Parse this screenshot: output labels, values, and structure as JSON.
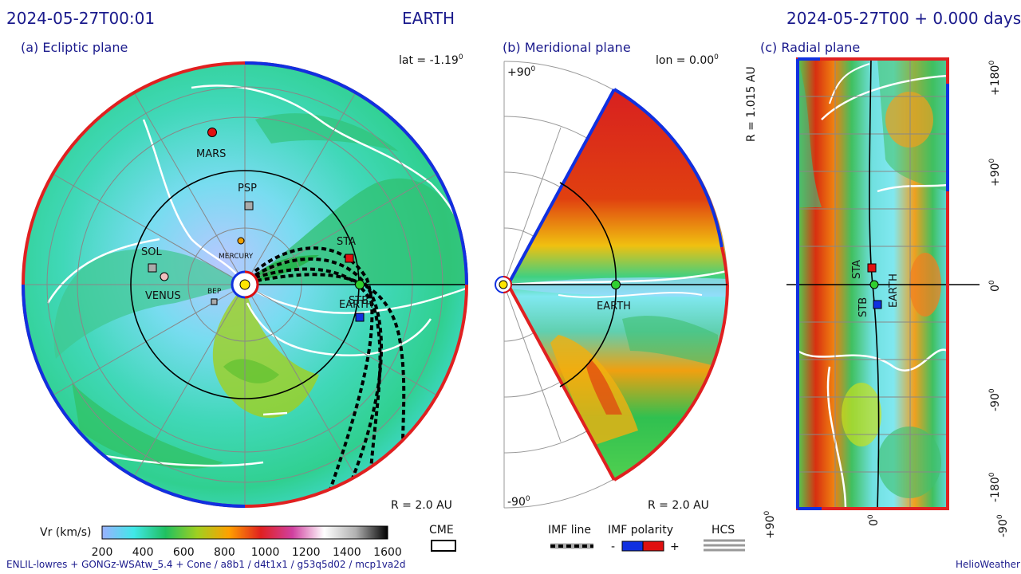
{
  "header": {
    "timestamp": "2024-05-27T00:01",
    "target": "EARTH",
    "run_time": "2024-05-27T00 +  0.000 days"
  },
  "panels": {
    "ecliptic": {
      "title": "(a) Ecliptic plane",
      "lat": "lat = -1.19",
      "lat_sup": "0",
      "radius": "R = 2.0 AU"
    },
    "meridional": {
      "title": "(b) Meridional plane",
      "lon": "lon = 0.00",
      "lon_sup": "0",
      "top_angle": "+90",
      "bottom_angle": "-90",
      "angle_sup": "0",
      "radius": "R = 2.0 AU",
      "earth": "EARTH"
    },
    "radial": {
      "title": "(c) Radial plane",
      "radius": "R = 1.015 AU",
      "right_ticks": [
        "+180",
        "+90",
        "0",
        "-90",
        "-180"
      ],
      "bottom_ticks": [
        "+90",
        "0",
        "-90"
      ],
      "tick_sup": "0",
      "labels": {
        "sta": "STA",
        "stb": "STB",
        "earth": "EARTH"
      }
    }
  },
  "bodies": {
    "mars": "MARS",
    "psp": "PSP",
    "sol": "SOL",
    "venus": "VENUS",
    "mercury": "MERCURY",
    "bep": "BEP",
    "sta": "STA",
    "stb": "STB",
    "earth": "EARTH"
  },
  "colorbar": {
    "label": "Vr (km/s)",
    "ticks": [
      "200",
      "400",
      "600",
      "800",
      "1000",
      "1200",
      "1400",
      "1600"
    ],
    "stops": [
      "#9ab0ff",
      "#40e8e8",
      "#20c060",
      "#a0d020",
      "#ffa000",
      "#e02020",
      "#d040a0",
      "#ffffff",
      "#b0b0b0",
      "#000000"
    ]
  },
  "legend": {
    "cme": "CME",
    "imf_line": "IMF line",
    "imf_polarity": "IMF polarity",
    "minus": "-",
    "plus": "+",
    "hcs": "HCS"
  },
  "colors": {
    "negative_polarity": "#1030e0",
    "positive_polarity": "#e01010",
    "header_text": "#1a1a8c"
  },
  "footer": {
    "credits": "ENLIL-lowres + GONGz-WSAtw_5.4 + Cone / a8b1 / d4t1x1 / g53q5d02 / mcp1va2d",
    "brand": "HelioWeather"
  }
}
